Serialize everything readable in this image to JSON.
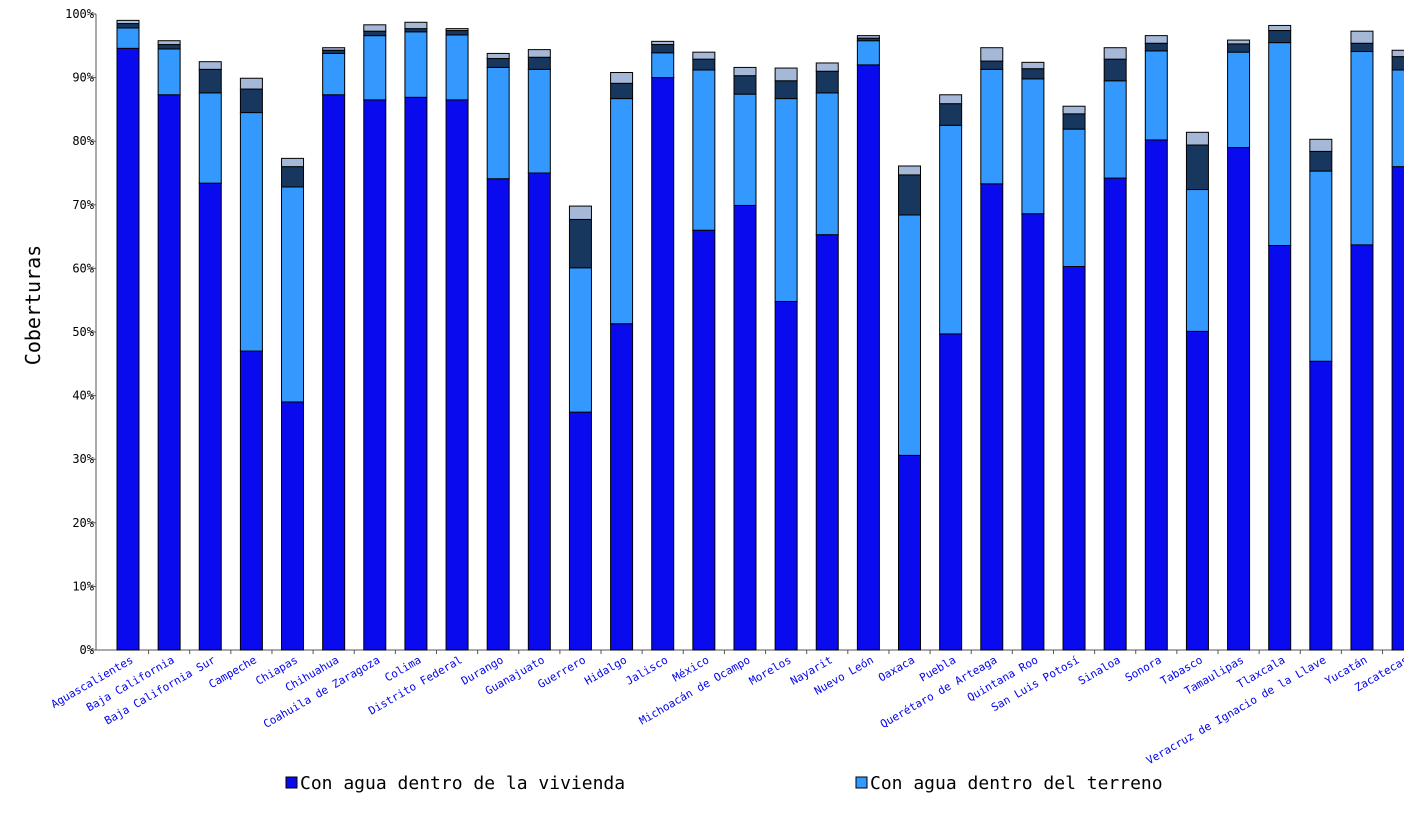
{
  "chart_data": {
    "type": "bar",
    "stacked": true,
    "ylabel": "Coberturas",
    "ylim": [
      0,
      100
    ],
    "yticks": [
      "0%",
      "10%",
      "20%",
      "30%",
      "40%",
      "50%",
      "60%",
      "70%",
      "80%",
      "90%",
      "100%"
    ],
    "categories": [
      "Aguascalientes",
      "Baja California",
      "Baja California Sur",
      "Campeche",
      "Chiapas",
      "Chihuahua",
      "Coahuila de Zaragoza",
      "Colima",
      "Distrito Federal",
      "Durango",
      "Guanajuato",
      "Guerrero",
      "Hidalgo",
      "Jalisco",
      "México",
      "Michoacán de Ocampo",
      "Morelos",
      "Nayarit",
      "Nuevo León",
      "Oaxaca",
      "Puebla",
      "Querétaro de Arteaga",
      "Quintana Roo",
      "San Luis Potosí",
      "Sinaloa",
      "Sonora",
      "Tabasco",
      "Tamaulipas",
      "Tlaxcala",
      "Veracruz de Ignacio de la Llave",
      "Yucatán",
      "Zacatecas"
    ],
    "series": [
      {
        "name": "Con agua dentro de la vivienda",
        "color": "#0a0aee",
        "values": [
          94.6,
          87.3,
          73.4,
          47.0,
          39.0,
          87.3,
          86.5,
          86.9,
          86.5,
          74.1,
          75.0,
          37.4,
          51.3,
          90.0,
          66.0,
          69.9,
          54.8,
          65.3,
          92.0,
          30.6,
          49.7,
          73.3,
          68.6,
          60.3,
          74.2,
          80.2,
          50.1,
          79.0,
          63.6,
          45.4,
          63.7,
          76.0
        ]
      },
      {
        "name": "Con agua dentro del terreno",
        "color": "#3399ff",
        "values": [
          3.2,
          7.2,
          14.2,
          37.5,
          33.8,
          6.5,
          10.1,
          10.3,
          10.2,
          17.5,
          16.3,
          22.7,
          35.4,
          3.9,
          25.2,
          17.5,
          31.9,
          22.3,
          3.8,
          37.8,
          32.8,
          18.0,
          21.2,
          21.6,
          15.3,
          14.0,
          22.3,
          15.0,
          31.9,
          29.9,
          30.4,
          15.2
        ]
      },
      {
        "color": "#17375e",
        "values": [
          0.7,
          0.7,
          3.7,
          3.7,
          3.2,
          0.5,
          0.7,
          0.5,
          0.7,
          1.4,
          1.9,
          7.6,
          2.4,
          1.3,
          1.7,
          2.9,
          2.8,
          3.4,
          0.4,
          6.3,
          3.4,
          1.3,
          1.6,
          2.4,
          3.4,
          1.2,
          7.0,
          1.3,
          1.9,
          3.1,
          1.3,
          2.1
        ]
      },
      {
        "color": "#a6b8d8",
        "values": [
          0.5,
          0.6,
          1.2,
          1.7,
          1.3,
          0.4,
          1.0,
          1.0,
          0.3,
          0.8,
          1.2,
          2.1,
          1.7,
          0.5,
          1.1,
          1.3,
          2.0,
          1.3,
          0.4,
          1.4,
          1.4,
          2.1,
          1.0,
          1.2,
          1.8,
          1.2,
          2.0,
          0.6,
          0.8,
          1.9,
          1.9,
          1.0
        ]
      }
    ],
    "legend": {
      "placement": "bottom"
    },
    "grid": false
  }
}
